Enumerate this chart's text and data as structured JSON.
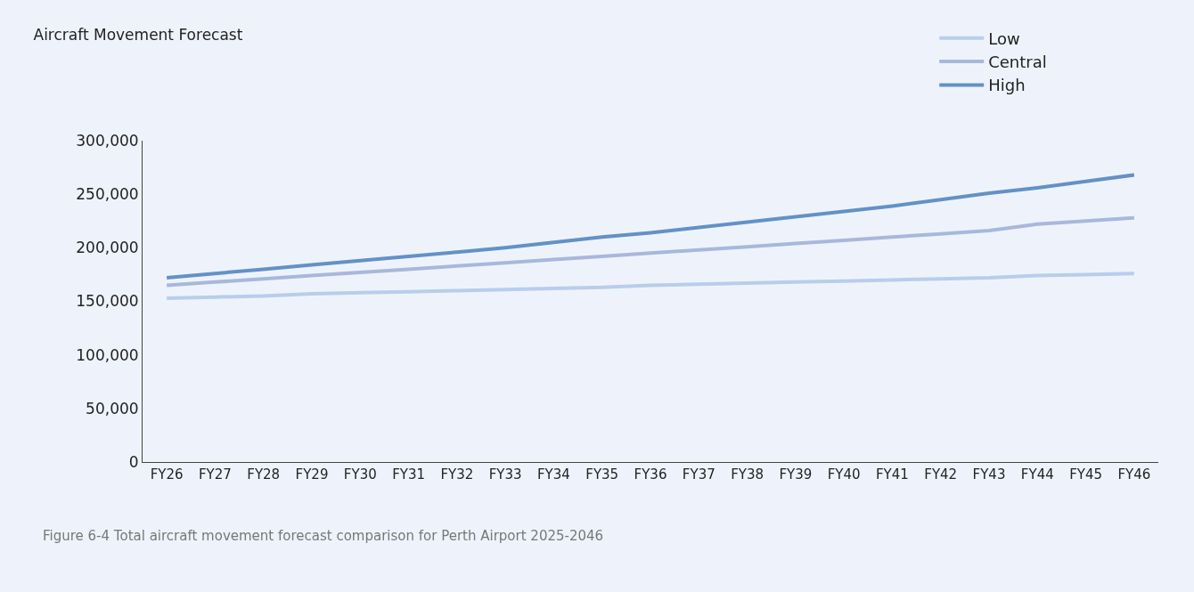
{
  "chart_data": {
    "type": "line",
    "title": "Aircraft Movement Forecast",
    "categories": [
      "FY26",
      "FY27",
      "FY28",
      "FY29",
      "FY30",
      "FY31",
      "FY32",
      "FY33",
      "FY34",
      "FY35",
      "FY36",
      "FY37",
      "FY38",
      "FY39",
      "FY40",
      "FY41",
      "FY42",
      "FY43",
      "FY44",
      "FY45",
      "FY46"
    ],
    "series": [
      {
        "name": "Low",
        "color": "#b9cdeb",
        "values": [
          153000,
          154000,
          155000,
          157000,
          158000,
          159000,
          160000,
          161000,
          162000,
          163000,
          165000,
          166000,
          167000,
          168000,
          169000,
          170000,
          171000,
          172000,
          174000,
          175000,
          176000
        ]
      },
      {
        "name": "Central",
        "color": "#a8b8dc",
        "values": [
          165000,
          168000,
          171000,
          174000,
          177000,
          180000,
          183000,
          186000,
          189000,
          192000,
          195000,
          198000,
          201000,
          204000,
          207000,
          210000,
          213000,
          216000,
          222000,
          225000,
          228000
        ]
      },
      {
        "name": "High",
        "color": "#6391c7",
        "values": [
          172000,
          176000,
          180000,
          184000,
          188000,
          192000,
          196000,
          200000,
          205000,
          210000,
          214000,
          219000,
          224000,
          229000,
          234000,
          239000,
          245000,
          251000,
          256000,
          262000,
          268000
        ]
      }
    ],
    "ylim": [
      0,
      300000
    ],
    "yticks": [
      {
        "value": 0,
        "label": "0"
      },
      {
        "value": 50000,
        "label": "50,000"
      },
      {
        "value": 100000,
        "label": "100,000"
      },
      {
        "value": 150000,
        "label": "150,000"
      },
      {
        "value": 200000,
        "label": "200,000"
      },
      {
        "value": 250000,
        "label": "250,000"
      },
      {
        "value": 300000,
        "label": "300,000"
      }
    ],
    "grid": false,
    "legend": "top right",
    "marker": "none",
    "line_style": "solid",
    "annotations": [
      "Figure 6-4 Total aircraft movement forecast comparison for Perth Airport 2025-2046"
    ]
  }
}
